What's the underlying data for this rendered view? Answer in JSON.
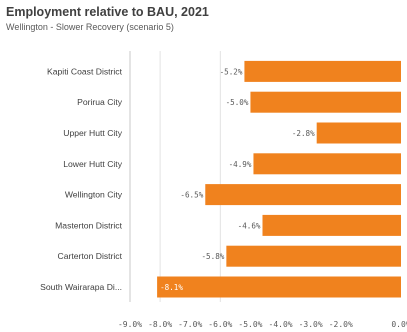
{
  "title": "Employment relative to BAU, 2021",
  "subtitle": "Wellington - Slower Recovery (scenario 5)",
  "colors": {
    "bar": "#F0821E",
    "grid": "#E2E2E2",
    "label_outside": "#595959",
    "label_inside": "#ffffff"
  },
  "chart_data": {
    "type": "bar",
    "orientation": "horizontal",
    "categories": [
      "Kapiti Coast District",
      "Porirua City",
      "Upper Hutt City",
      "Lower Hutt City",
      "Wellington City",
      "Masterton District",
      "Carterton District",
      "South Wairarapa Di..."
    ],
    "values": [
      -5.2,
      -5.0,
      -2.8,
      -4.9,
      -6.5,
      -4.6,
      -5.8,
      -8.1
    ],
    "value_labels": [
      "-5.2%",
      "-5.0%",
      "-2.8%",
      "-4.9%",
      "-6.5%",
      "-4.6%",
      "-5.8%",
      "-8.1%"
    ],
    "xlim": [
      -9.0,
      0.0
    ],
    "xticks": [
      -9.0,
      -8.0,
      -7.0,
      -6.0,
      -5.0,
      -4.0,
      -3.0,
      -2.0,
      0.0
    ],
    "xtick_labels": [
      "-9.0%",
      "-8.0%",
      "-7.0%",
      "-6.0%",
      "-5.0%",
      "-4.0%",
      "-3.0%",
      "-2.0%",
      "0.0%"
    ],
    "gridlines": [
      -8.0,
      -6.0
    ],
    "grid": true,
    "legend": false
  }
}
